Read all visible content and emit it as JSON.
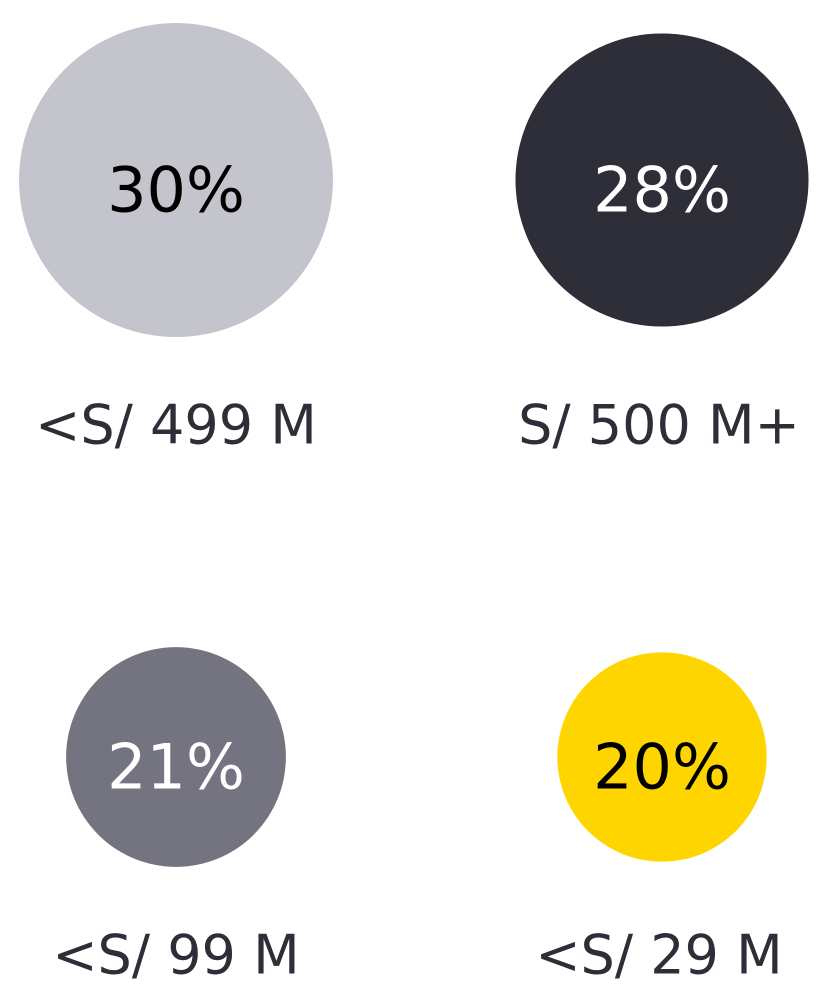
{
  "chart_data": {
    "type": "bubble",
    "categories": [
      "<S/ 499 M",
      "S/ 500 M+",
      "<S/ 99 M",
      "<S/ 29 M"
    ],
    "values": [
      30,
      28,
      21,
      20
    ],
    "value_labels": [
      "30%",
      "28%",
      "21%",
      "20%"
    ],
    "colors": [
      "#c4c4cd",
      "#2e2e38",
      "#747480",
      "#ffd500"
    ],
    "label_colors": [
      "#000000",
      "#ffffff",
      "#ffffff",
      "#000000"
    ]
  }
}
